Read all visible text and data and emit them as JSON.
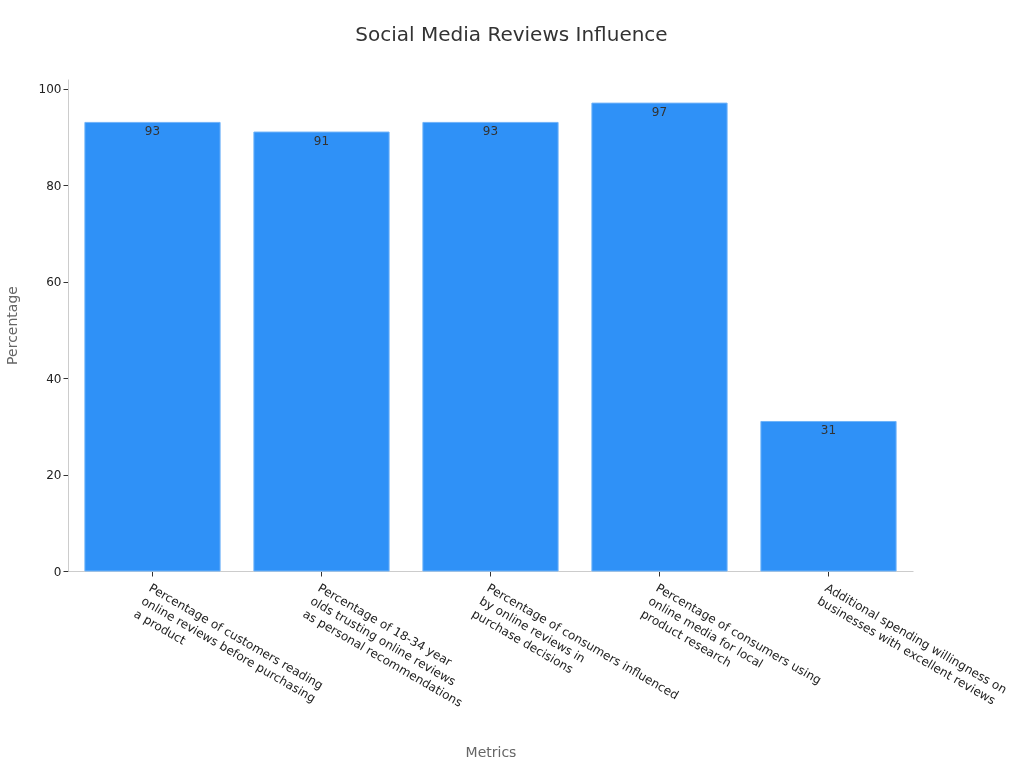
{
  "chart_data": {
    "type": "bar",
    "title": "Social Media Reviews Influence",
    "xlabel": "Metrics",
    "ylabel": "Percentage",
    "categories": [
      "Percentage of customers reading\nonline reviews before purchasing\na product",
      "Percentage of 18-34 year\nolds trusting online reviews\nas personal recommendations",
      "Percentage of consumers influenced\nby online reviews in\npurchase decisions",
      "Percentage of consumers using\nonline media for local\nproduct research",
      "Additional spending willingness on\nbusinesses with excellent reviews"
    ],
    "values": [
      93,
      91,
      93,
      97,
      31
    ],
    "color": "#2f91f7",
    "ylim": [
      0,
      102
    ],
    "yticks": [
      0,
      20,
      40,
      60,
      80,
      100
    ],
    "data_labels": true
  }
}
